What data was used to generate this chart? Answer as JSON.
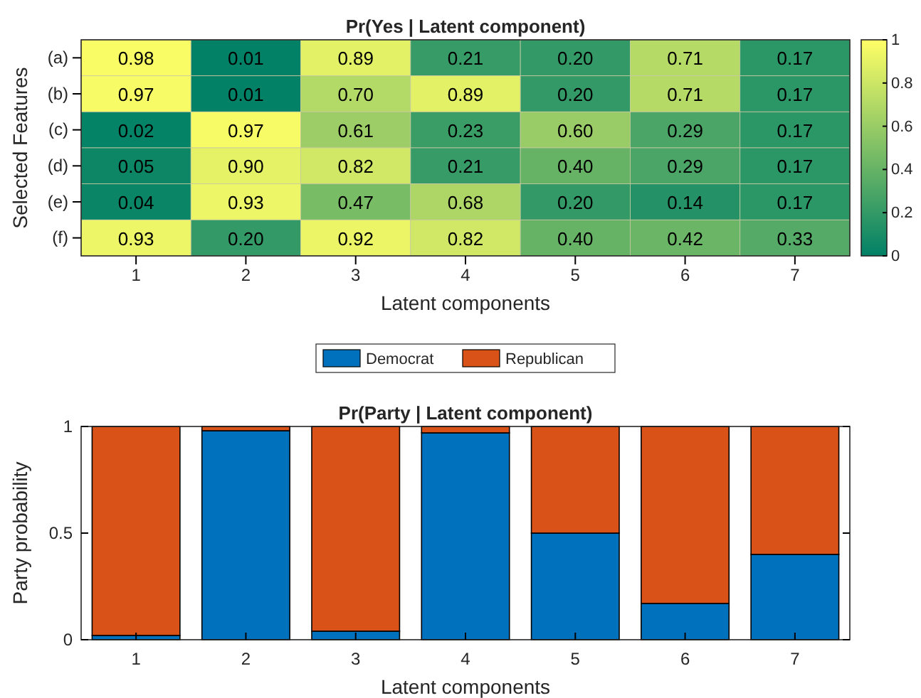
{
  "chart_data": [
    {
      "type": "heatmap",
      "title": "Pr(Yes | Latent component)",
      "xlabel": "Latent components",
      "ylabel": "Selected Features",
      "categories": [
        "1",
        "2",
        "3",
        "4",
        "5",
        "6",
        "7"
      ],
      "y_categories": [
        "(a)",
        "(b)",
        "(c)",
        "(d)",
        "(e)",
        "(f)"
      ],
      "cells": [
        [
          0.98,
          0.01,
          0.89,
          0.21,
          0.2,
          0.71,
          0.17
        ],
        [
          0.97,
          0.01,
          0.7,
          0.89,
          0.2,
          0.71,
          0.17
        ],
        [
          0.02,
          0.97,
          0.61,
          0.23,
          0.6,
          0.29,
          0.17
        ],
        [
          0.05,
          0.9,
          0.82,
          0.21,
          0.4,
          0.29,
          0.17
        ],
        [
          0.04,
          0.93,
          0.47,
          0.68,
          0.2,
          0.14,
          0.17
        ],
        [
          0.93,
          0.2,
          0.92,
          0.82,
          0.4,
          0.42,
          0.33
        ]
      ],
      "cell_labels": [
        [
          "0.98",
          "0.01",
          "0.89",
          "0.21",
          "0.20",
          "0.71",
          "0.17"
        ],
        [
          "0.97",
          "0.01",
          "0.70",
          "0.89",
          "0.20",
          "0.71",
          "0.17"
        ],
        [
          "0.02",
          "0.97",
          "0.61",
          "0.23",
          "0.60",
          "0.29",
          "0.17"
        ],
        [
          "0.05",
          "0.90",
          "0.82",
          "0.21",
          "0.40",
          "0.29",
          "0.17"
        ],
        [
          "0.04",
          "0.93",
          "0.47",
          "0.68",
          "0.20",
          "0.14",
          "0.17"
        ],
        [
          "0.93",
          "0.20",
          "0.92",
          "0.82",
          "0.40",
          "0.42",
          "0.33"
        ]
      ],
      "colors": [
        "#008066",
        "#ffff66"
      ],
      "clim": [
        0,
        1
      ],
      "cticks": [
        0,
        0.2,
        0.4,
        0.6,
        0.8,
        1
      ]
    },
    {
      "type": "bar",
      "title": "Pr(Party | Latent component)",
      "xlabel": "Latent components",
      "ylabel": "Party probability",
      "categories": [
        "1",
        "2",
        "3",
        "4",
        "5",
        "6",
        "7"
      ],
      "stacked": true,
      "legend": "top",
      "ylim": [
        0,
        1
      ],
      "yticks": [
        0,
        0.5,
        1
      ],
      "series": [
        {
          "name": "Democrat",
          "color": "#0072bd",
          "values": [
            0.02,
            0.98,
            0.04,
            0.97,
            0.5,
            0.17,
            0.4
          ]
        },
        {
          "name": "Republican",
          "color": "#d95319",
          "values": [
            0.98,
            0.02,
            0.96,
            0.03,
            0.5,
            0.83,
            0.6
          ]
        }
      ]
    }
  ]
}
